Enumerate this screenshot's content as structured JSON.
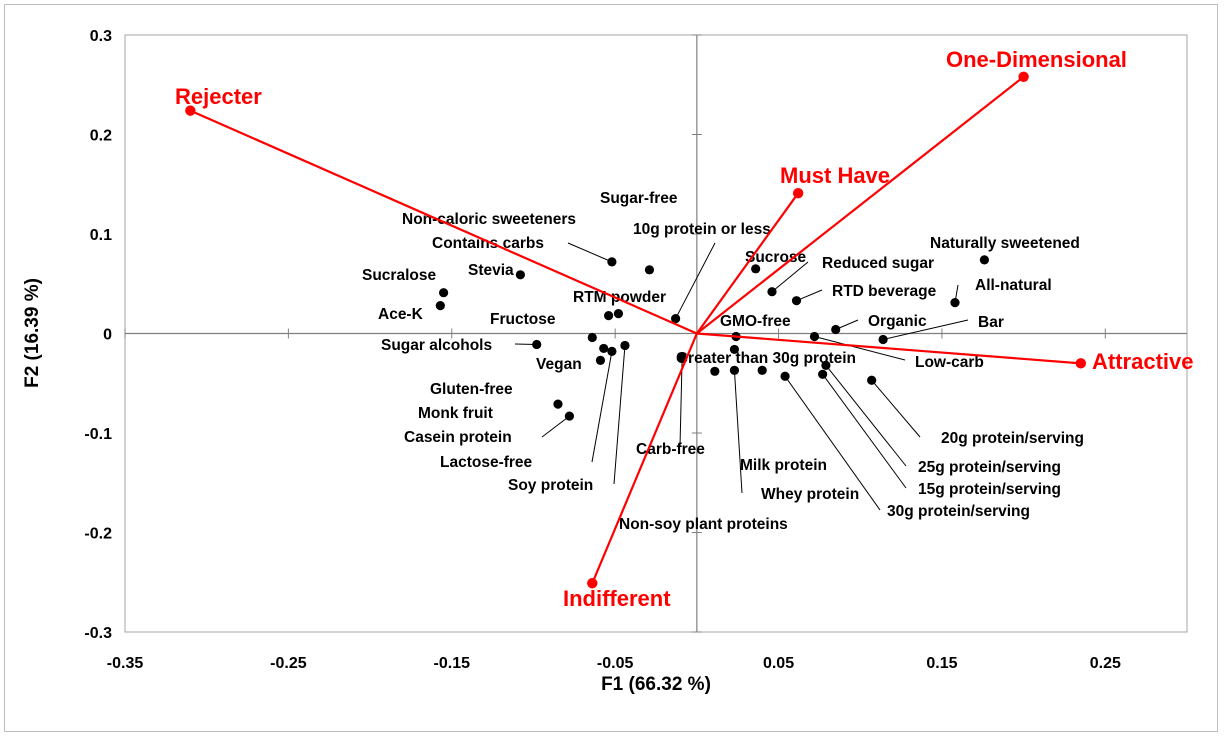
{
  "chart_data": {
    "type": "scatter",
    "title": "",
    "xlabel": "F1 (66.32 %)",
    "ylabel": "F2 (16.39 %)",
    "xlim": [
      -0.35,
      0.3
    ],
    "ylim": [
      -0.3,
      0.3
    ],
    "x_ticks": [
      "-0.35",
      "-0.25",
      "-0.15",
      "-0.05",
      "0.05",
      "0.15",
      "0.25"
    ],
    "y_ticks": [
      "0.3",
      "0.2",
      "0.1",
      "0",
      "-0.1",
      "-0.2",
      "-0.3"
    ],
    "grid": false,
    "point_color": "#000000",
    "vector_color": "#ff0000",
    "vectors": [
      {
        "name": "Rejecter",
        "x": -0.31,
        "y": 0.224
      },
      {
        "name": "One-Dimensional",
        "x": 0.2,
        "y": 0.258
      },
      {
        "name": "Must Have",
        "x": 0.062,
        "y": 0.141
      },
      {
        "name": "Attractive",
        "x": 0.235,
        "y": -0.03
      },
      {
        "name": "Indifferent",
        "x": -0.064,
        "y": -0.251
      }
    ],
    "points": [
      {
        "label": "Sugar-free",
        "x": -0.029,
        "y": 0.064
      },
      {
        "label": "Non-caloric sweeteners",
        "x": -0.054,
        "y": 0.018
      },
      {
        "label": "Contains carbs",
        "x": -0.052,
        "y": 0.072
      },
      {
        "label": "10g protein or less",
        "x": -0.013,
        "y": 0.015
      },
      {
        "label": "Sucralose",
        "x": -0.155,
        "y": 0.041
      },
      {
        "label": "Stevia",
        "x": -0.108,
        "y": 0.059
      },
      {
        "label": "Ace-K",
        "x": -0.157,
        "y": 0.028
      },
      {
        "label": "RTM powder",
        "x": -0.048,
        "y": 0.02
      },
      {
        "label": "Fructose",
        "x": -0.064,
        "y": -0.004
      },
      {
        "label": "Sugar alcohols",
        "x": -0.098,
        "y": -0.011
      },
      {
        "label": "Vegan",
        "x": -0.059,
        "y": -0.027
      },
      {
        "label": "Gluten-free",
        "x": -0.057,
        "y": -0.015
      },
      {
        "label": "Monk fruit",
        "x": -0.085,
        "y": -0.071
      },
      {
        "label": "Casein protein",
        "x": -0.078,
        "y": -0.083
      },
      {
        "label": "Lactose-free",
        "x": -0.052,
        "y": -0.018
      },
      {
        "label": "Soy protein",
        "x": -0.044,
        "y": -0.012
      },
      {
        "label": "Carb-free",
        "x": -0.009,
        "y": -0.024
      },
      {
        "label": "Sucrose",
        "x": 0.036,
        "y": 0.065
      },
      {
        "label": "Reduced sugar",
        "x": 0.046,
        "y": 0.042
      },
      {
        "label": "RTD beverage",
        "x": 0.061,
        "y": 0.033
      },
      {
        "label": "GMO-free",
        "x": 0.024,
        "y": -0.003
      },
      {
        "label": "Greater than 30g protein",
        "x": 0.023,
        "y": -0.016
      },
      {
        "label": "Organic",
        "x": 0.085,
        "y": 0.004
      },
      {
        "label": "Naturally sweetened",
        "x": 0.176,
        "y": 0.074
      },
      {
        "label": "All-natural",
        "x": 0.158,
        "y": 0.031
      },
      {
        "label": "Bar",
        "x": 0.114,
        "y": -0.006
      },
      {
        "label": "Low-carb",
        "x": 0.072,
        "y": -0.003
      },
      {
        "label": "20g protein/serving",
        "x": 0.107,
        "y": -0.047
      },
      {
        "label": "25g protein/serving",
        "x": 0.079,
        "y": -0.032
      },
      {
        "label": "15g protein/serving",
        "x": 0.077,
        "y": -0.041
      },
      {
        "label": "30g protein/serving",
        "x": 0.054,
        "y": -0.043
      },
      {
        "label": "Milk protein",
        "x": 0.04,
        "y": -0.037
      },
      {
        "label": "Whey protein",
        "x": 0.023,
        "y": -0.037
      },
      {
        "label": "Non-soy plant proteins",
        "x": 0.011,
        "y": -0.038
      }
    ]
  }
}
